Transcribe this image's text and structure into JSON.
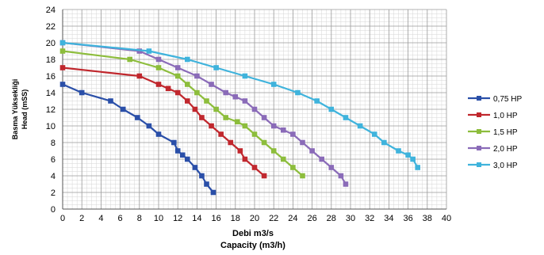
{
  "chart_data": {
    "type": "line",
    "xlabel_line1": "Debi m3/s",
    "xlabel_line2": "Capacity (m3/h)",
    "ylabel_line1": "Basma Yüksekliği",
    "ylabel_line2": "Head (mSS)",
    "xlim": [
      0,
      40
    ],
    "ylim": [
      0,
      24
    ],
    "x_ticks": [
      0,
      2,
      4,
      6,
      8,
      10,
      12,
      14,
      16,
      18,
      20,
      22,
      24,
      26,
      28,
      30,
      32,
      34,
      36,
      38,
      40
    ],
    "y_ticks": [
      0,
      2,
      4,
      6,
      8,
      10,
      12,
      14,
      16,
      18,
      20,
      22,
      24
    ],
    "grid": true,
    "legend_position": "right",
    "series": [
      {
        "name": "0,75 HP",
        "color": "#2a4fa8",
        "points": [
          [
            0,
            15
          ],
          [
            2,
            14
          ],
          [
            5,
            13
          ],
          [
            6.3,
            12
          ],
          [
            7.8,
            11
          ],
          [
            9,
            10
          ],
          [
            10,
            9
          ],
          [
            11.6,
            8
          ],
          [
            12,
            7
          ],
          [
            12.5,
            6.5
          ],
          [
            13,
            6
          ],
          [
            13.8,
            5
          ],
          [
            14.5,
            4
          ],
          [
            15,
            3
          ],
          [
            15.7,
            2
          ]
        ]
      },
      {
        "name": "1,0 HP",
        "color": "#c0272d",
        "points": [
          [
            0,
            17
          ],
          [
            8,
            16
          ],
          [
            10,
            15
          ],
          [
            11,
            14.5
          ],
          [
            12,
            14
          ],
          [
            13,
            13
          ],
          [
            13.8,
            12
          ],
          [
            14.5,
            11
          ],
          [
            15.5,
            10
          ],
          [
            16.5,
            9
          ],
          [
            17.5,
            8
          ],
          [
            18.5,
            7
          ],
          [
            19,
            6
          ],
          [
            20,
            5
          ],
          [
            21,
            4
          ]
        ]
      },
      {
        "name": "1,5 HP",
        "color": "#8dbd3c",
        "points": [
          [
            0,
            19
          ],
          [
            7,
            18
          ],
          [
            10,
            17
          ],
          [
            12,
            16
          ],
          [
            13,
            15
          ],
          [
            14,
            14
          ],
          [
            15,
            13
          ],
          [
            16,
            12
          ],
          [
            17,
            11
          ],
          [
            18.2,
            10.5
          ],
          [
            19,
            10
          ],
          [
            20,
            9
          ],
          [
            21,
            8
          ],
          [
            22,
            7
          ],
          [
            23,
            6
          ],
          [
            24,
            5
          ],
          [
            25,
            4
          ]
        ]
      },
      {
        "name": "2,0 HP",
        "color": "#8a6bb8",
        "points": [
          [
            0,
            20
          ],
          [
            8,
            19
          ],
          [
            10,
            18
          ],
          [
            12,
            17
          ],
          [
            14,
            16
          ],
          [
            15.5,
            15
          ],
          [
            17,
            14
          ],
          [
            18,
            13.5
          ],
          [
            19,
            13
          ],
          [
            20,
            12
          ],
          [
            21,
            11
          ],
          [
            22,
            10
          ],
          [
            23,
            9.5
          ],
          [
            24,
            9
          ],
          [
            25,
            8
          ],
          [
            26,
            7
          ],
          [
            27,
            6
          ],
          [
            28,
            5
          ],
          [
            29,
            4
          ],
          [
            29.5,
            3
          ]
        ]
      },
      {
        "name": "3,0 HP",
        "color": "#3fb3dc",
        "points": [
          [
            0,
            20
          ],
          [
            9,
            19
          ],
          [
            13,
            18
          ],
          [
            16,
            17
          ],
          [
            19,
            16
          ],
          [
            22,
            15
          ],
          [
            24.5,
            14
          ],
          [
            26.5,
            13
          ],
          [
            28,
            12
          ],
          [
            29.5,
            11
          ],
          [
            31,
            10
          ],
          [
            32.5,
            9
          ],
          [
            33.5,
            8
          ],
          [
            35,
            7
          ],
          [
            36,
            6.5
          ],
          [
            36.5,
            6
          ],
          [
            37,
            5
          ]
        ]
      }
    ]
  }
}
